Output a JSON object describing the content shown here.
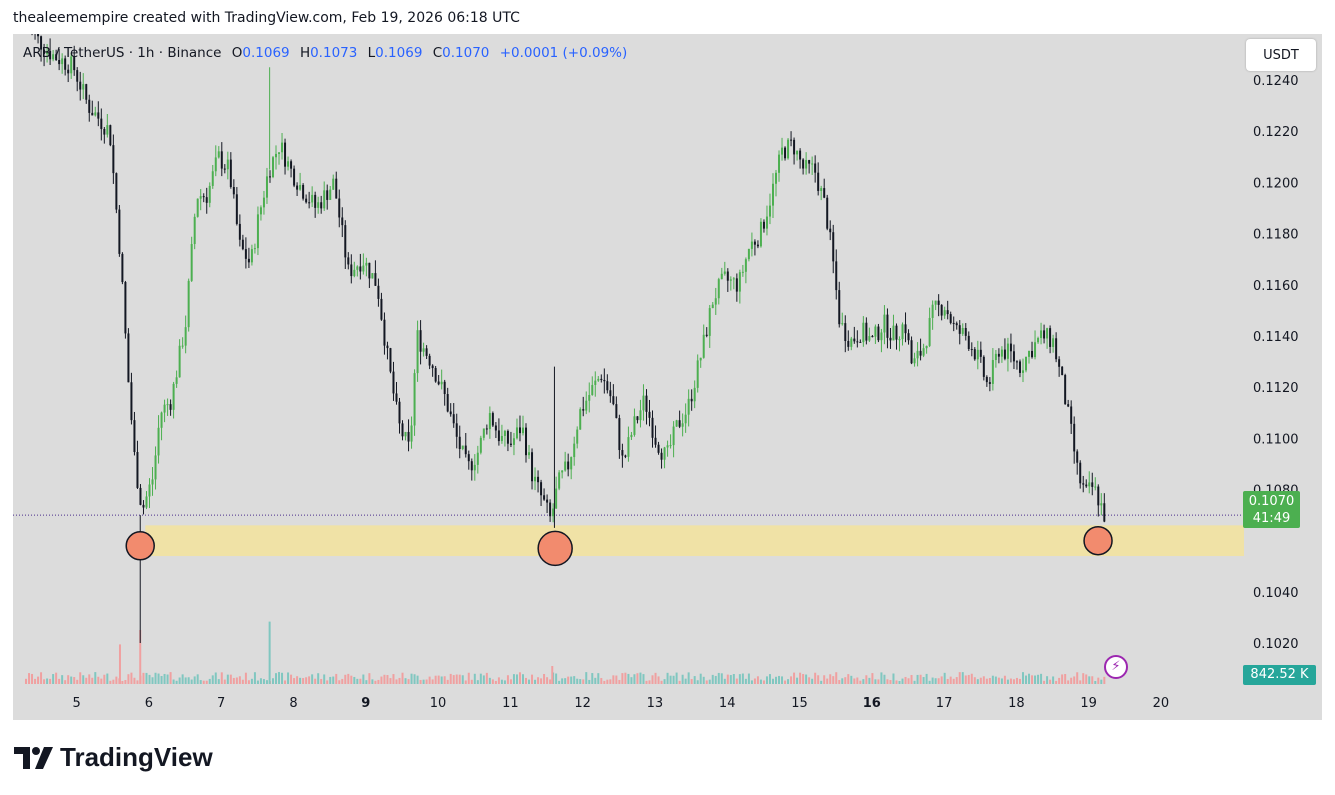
{
  "header": {
    "attribution": "thealeemempire created with TradingView.com, Feb 19, 2026 06:18 UTC"
  },
  "legend": {
    "symbol": "ARB / TetherUS · 1h · Binance",
    "open_label": "O",
    "open": "0.1069",
    "high_label": "H",
    "high": "0.1073",
    "low_label": "L",
    "low": "0.1069",
    "close_label": "C",
    "close": "0.1070",
    "change": "+0.0001 (+0.09%)"
  },
  "currency_button": "USDT",
  "price_badge": {
    "price": "0.1070",
    "countdown": "41:49"
  },
  "volume_badge": "842.52 K",
  "alert_icon": "lightning-icon",
  "brand": {
    "name": "TradingView",
    "logo_icon": "tradingview-logo-icon"
  },
  "colors": {
    "up": "#4caf50",
    "down": "#131722",
    "background": "#dcdcdc",
    "zone": "#f0e2a6",
    "marker": "#f28b6e",
    "vol_up": "#80c7c0",
    "vol_down": "#f0a0a0",
    "accent": "#2962ff"
  },
  "chart_data": {
    "type": "candlestick",
    "y_ticks": [
      "0.1240",
      "0.1220",
      "0.1200",
      "0.1180",
      "0.1160",
      "0.1140",
      "0.1120",
      "0.1100",
      "0.1080",
      "0.1040",
      "0.1020"
    ],
    "x_ticks": [
      {
        "label": "5",
        "day": 5,
        "bold": false
      },
      {
        "label": "6",
        "day": 6,
        "bold": false
      },
      {
        "label": "7",
        "day": 7,
        "bold": false
      },
      {
        "label": "8",
        "day": 8,
        "bold": false
      },
      {
        "label": "9",
        "day": 9,
        "bold": true
      },
      {
        "label": "10",
        "day": 10,
        "bold": false
      },
      {
        "label": "11",
        "day": 11,
        "bold": false
      },
      {
        "label": "12",
        "day": 12,
        "bold": false
      },
      {
        "label": "13",
        "day": 13,
        "bold": false
      },
      {
        "label": "14",
        "day": 14,
        "bold": false
      },
      {
        "label": "15",
        "day": 15,
        "bold": false
      },
      {
        "label": "16",
        "day": 16,
        "bold": true
      },
      {
        "label": "17",
        "day": 17,
        "bold": false
      },
      {
        "label": "18",
        "day": 18,
        "bold": false
      },
      {
        "label": "19",
        "day": 19,
        "bold": false
      },
      {
        "label": "20",
        "day": 20,
        "bold": false
      }
    ],
    "y_range": [
      0.1004,
      0.1258
    ],
    "x_range": [
      4.12,
      20.9
    ],
    "current_price": 0.107,
    "support_zone": [
      0.1054,
      0.1066
    ],
    "support_touches": [
      {
        "day": 5.88,
        "price": 0.1058
      },
      {
        "day": 11.62,
        "price": 0.1057
      },
      {
        "day": 19.13,
        "price": 0.106
      }
    ],
    "price_path": [
      [
        4.3,
        0.1262
      ],
      [
        4.7,
        0.125
      ],
      [
        5.0,
        0.1245
      ],
      [
        5.2,
        0.123
      ],
      [
        5.5,
        0.122
      ],
      [
        5.65,
        0.117
      ],
      [
        5.75,
        0.1125
      ],
      [
        5.85,
        0.109
      ],
      [
        5.95,
        0.1072
      ],
      [
        6.1,
        0.1085
      ],
      [
        6.2,
        0.111
      ],
      [
        6.35,
        0.1115
      ],
      [
        6.55,
        0.1145
      ],
      [
        6.7,
        0.1195
      ],
      [
        6.85,
        0.1195
      ],
      [
        7.0,
        0.121
      ],
      [
        7.15,
        0.1205
      ],
      [
        7.3,
        0.1175
      ],
      [
        7.45,
        0.1168
      ],
      [
        7.55,
        0.1185
      ],
      [
        7.7,
        0.1205
      ],
      [
        7.85,
        0.1215
      ],
      [
        8.0,
        0.1205
      ],
      [
        8.15,
        0.1198
      ],
      [
        8.35,
        0.119
      ],
      [
        8.6,
        0.12
      ],
      [
        8.8,
        0.1165
      ],
      [
        9.0,
        0.117
      ],
      [
        9.2,
        0.116
      ],
      [
        9.35,
        0.113
      ],
      [
        9.5,
        0.1105
      ],
      [
        9.65,
        0.1095
      ],
      [
        9.75,
        0.114
      ],
      [
        9.95,
        0.113
      ],
      [
        10.15,
        0.1115
      ],
      [
        10.3,
        0.11
      ],
      [
        10.45,
        0.1088
      ],
      [
        10.6,
        0.1095
      ],
      [
        10.75,
        0.111
      ],
      [
        10.9,
        0.11
      ],
      [
        11.05,
        0.1098
      ],
      [
        11.2,
        0.1105
      ],
      [
        11.35,
        0.1085
      ],
      [
        11.5,
        0.1075
      ],
      [
        11.6,
        0.1068
      ],
      [
        11.7,
        0.1082
      ],
      [
        11.85,
        0.109
      ],
      [
        12.0,
        0.111
      ],
      [
        12.15,
        0.1118
      ],
      [
        12.3,
        0.1125
      ],
      [
        12.45,
        0.1115
      ],
      [
        12.6,
        0.109
      ],
      [
        12.75,
        0.1105
      ],
      [
        12.9,
        0.1115
      ],
      [
        13.05,
        0.11
      ],
      [
        13.2,
        0.1092
      ],
      [
        13.35,
        0.1105
      ],
      [
        13.5,
        0.1112
      ],
      [
        13.7,
        0.1135
      ],
      [
        13.85,
        0.1155
      ],
      [
        14.0,
        0.1162
      ],
      [
        14.2,
        0.116
      ],
      [
        14.35,
        0.1175
      ],
      [
        14.5,
        0.118
      ],
      [
        14.65,
        0.1195
      ],
      [
        14.8,
        0.1212
      ],
      [
        14.95,
        0.1215
      ],
      [
        15.1,
        0.1205
      ],
      [
        15.25,
        0.1205
      ],
      [
        15.4,
        0.119
      ],
      [
        15.5,
        0.117
      ],
      [
        15.6,
        0.1145
      ],
      [
        15.75,
        0.1138
      ],
      [
        15.9,
        0.1142
      ],
      [
        16.05,
        0.1138
      ],
      [
        16.2,
        0.1145
      ],
      [
        16.35,
        0.114
      ],
      [
        16.5,
        0.1145
      ],
      [
        16.6,
        0.1128
      ],
      [
        16.75,
        0.1135
      ],
      [
        16.9,
        0.115
      ],
      [
        17.05,
        0.1152
      ],
      [
        17.2,
        0.1142
      ],
      [
        17.35,
        0.114
      ],
      [
        17.5,
        0.1132
      ],
      [
        17.65,
        0.112
      ],
      [
        17.8,
        0.1135
      ],
      [
        17.95,
        0.1133
      ],
      [
        18.1,
        0.1128
      ],
      [
        18.25,
        0.1135
      ],
      [
        18.4,
        0.114
      ],
      [
        18.55,
        0.1138
      ],
      [
        18.7,
        0.1118
      ],
      [
        18.8,
        0.1102
      ],
      [
        18.9,
        0.1085
      ],
      [
        19.0,
        0.1078
      ],
      [
        19.1,
        0.1081
      ],
      [
        19.2,
        0.1075
      ],
      [
        19.25,
        0.107
      ]
    ],
    "spikes": [
      {
        "day": 5.88,
        "high": 0.107,
        "low": 0.102
      },
      {
        "day": 7.67,
        "high": 0.1245,
        "low": 0.1205
      },
      {
        "day": 11.61,
        "high": 0.1128,
        "low": 0.1065
      }
    ],
    "volume_spikes": [
      {
        "day": 5.6,
        "rel": 0.33,
        "up": false
      },
      {
        "day": 5.88,
        "rel": 0.45,
        "up": false
      },
      {
        "day": 7.67,
        "rel": 0.52,
        "up": true
      },
      {
        "day": 11.58,
        "rel": 0.15,
        "up": false
      }
    ]
  }
}
